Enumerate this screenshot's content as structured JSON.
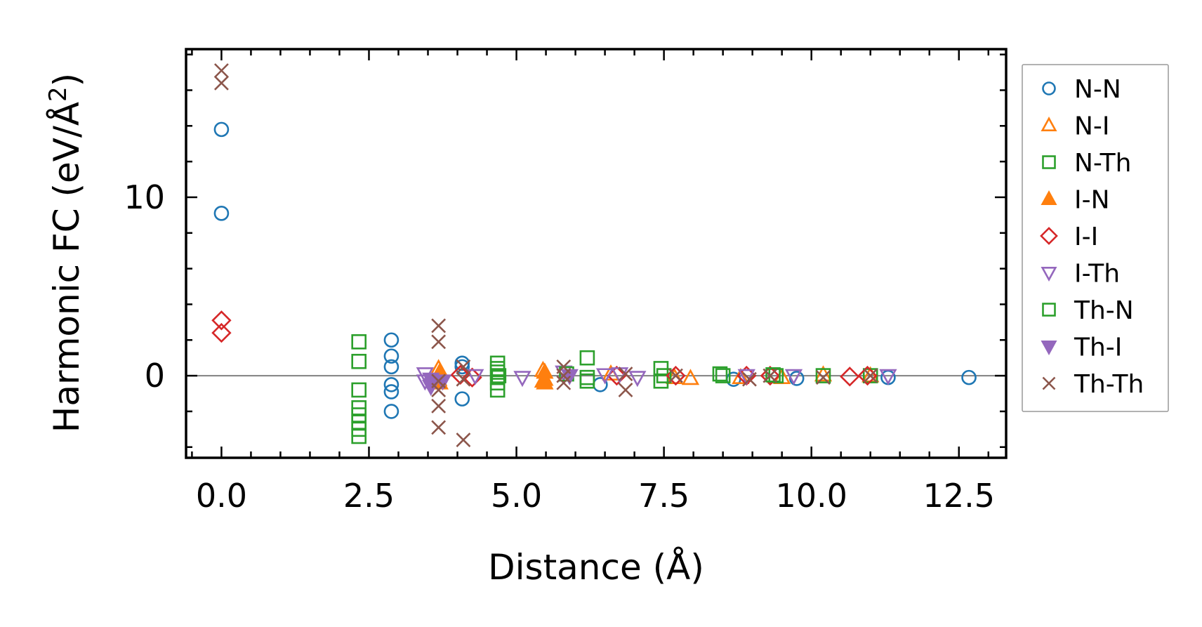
{
  "chart_data": {
    "type": "scatter",
    "title": "",
    "xlabel": "Distance (Å)",
    "ylabel_main": "Harmonic FC (eV/Å",
    "ylabel_sup": "2",
    "ylabel_close": ")",
    "xlim": [
      -0.6,
      13.3
    ],
    "ylim": [
      -4.6,
      18.3
    ],
    "xticks": [
      0.0,
      2.5,
      5.0,
      7.5,
      10.0,
      12.5
    ],
    "xtick_labels": [
      "0.0",
      "2.5",
      "5.0",
      "7.5",
      "10.0",
      "12.5"
    ],
    "yticks": [
      0,
      10
    ],
    "ytick_labels": [
      "0",
      "10"
    ],
    "grid": false,
    "zero_line": true,
    "legend_position": "outside-right",
    "series": [
      {
        "name": "N-N",
        "marker": "circle-open",
        "color": "#1f77b4",
        "points": [
          [
            0,
            13.8
          ],
          [
            0,
            9.1
          ],
          [
            2.88,
            2.0
          ],
          [
            2.88,
            1.1
          ],
          [
            2.88,
            0.5
          ],
          [
            2.88,
            -0.5
          ],
          [
            2.88,
            -0.9
          ],
          [
            2.88,
            -2.0
          ],
          [
            4.08,
            0.7
          ],
          [
            4.08,
            0.5
          ],
          [
            4.08,
            -1.3
          ],
          [
            6.42,
            -0.5
          ],
          [
            8.68,
            -0.2
          ],
          [
            9.75,
            -0.15
          ],
          [
            11.3,
            -0.1
          ],
          [
            12.67,
            -0.1
          ]
        ]
      },
      {
        "name": "N-I",
        "marker": "triangle-up-open",
        "color": "#ff7f0e",
        "points": [
          [
            3.68,
            0.4
          ],
          [
            3.68,
            -0.2
          ],
          [
            5.45,
            0.3
          ],
          [
            5.45,
            -0.3
          ],
          [
            6.6,
            0.1
          ],
          [
            7.68,
            -0.1
          ],
          [
            7.95,
            -0.15
          ],
          [
            8.8,
            -0.1
          ],
          [
            9.5,
            -0.1
          ],
          [
            10.2,
            0.05
          ],
          [
            11.0,
            0.0
          ]
        ]
      },
      {
        "name": "N-Th",
        "marker": "square-open",
        "color": "#2ca02c",
        "points": [
          [
            2.33,
            1.9
          ],
          [
            2.33,
            0.8
          ],
          [
            2.33,
            -0.8
          ],
          [
            2.33,
            -1.8
          ],
          [
            2.33,
            -2.2
          ],
          [
            2.33,
            -2.6
          ],
          [
            2.33,
            -3.0
          ],
          [
            2.33,
            -3.4
          ],
          [
            4.68,
            0.7
          ],
          [
            4.68,
            0.4
          ],
          [
            4.68,
            0.2
          ],
          [
            4.68,
            -0.1
          ],
          [
            4.68,
            -0.4
          ],
          [
            4.68,
            -0.8
          ],
          [
            6.2,
            1.0
          ],
          [
            6.2,
            -0.3
          ],
          [
            7.45,
            0.4
          ],
          [
            7.45,
            -0.3
          ],
          [
            8.45,
            0.1
          ],
          [
            9.4,
            0.0
          ],
          [
            10.2,
            0.0
          ],
          [
            11.0,
            0.0
          ]
        ]
      },
      {
        "name": "I-N",
        "marker": "triangle-up-filled",
        "color": "#ff7f0e",
        "points": [
          [
            3.7,
            0.2
          ],
          [
            3.7,
            -0.4
          ],
          [
            5.48,
            0.2
          ],
          [
            5.48,
            -0.4
          ],
          [
            5.48,
            -0.2
          ]
        ]
      },
      {
        "name": "I-I",
        "marker": "diamond-open",
        "color": "#d62728",
        "points": [
          [
            0,
            3.1
          ],
          [
            0,
            2.4
          ],
          [
            4.05,
            0.05
          ],
          [
            4.25,
            -0.1
          ],
          [
            6.7,
            0.0
          ],
          [
            7.7,
            0.0
          ],
          [
            8.9,
            0.0
          ],
          [
            9.3,
            0.0
          ],
          [
            10.65,
            -0.05
          ],
          [
            10.95,
            0.0
          ]
        ]
      },
      {
        "name": "I-Th",
        "marker": "triangle-down-open",
        "color": "#9467bd",
        "points": [
          [
            3.45,
            0.1
          ],
          [
            3.45,
            -0.3
          ],
          [
            4.3,
            0.0
          ],
          [
            5.1,
            -0.1
          ],
          [
            5.8,
            0.2
          ],
          [
            6.5,
            0.05
          ],
          [
            6.75,
            0.1
          ],
          [
            7.05,
            -0.1
          ],
          [
            8.9,
            0.0
          ],
          [
            9.7,
            0.0
          ],
          [
            11.3,
            0.0
          ]
        ]
      },
      {
        "name": "Th-N",
        "marker": "square-open",
        "color": "#2ca02c",
        "points": [
          [
            4.7,
            0.0
          ],
          [
            5.85,
            0.1
          ],
          [
            6.2,
            -0.1
          ],
          [
            7.5,
            0.0
          ],
          [
            8.5,
            0.0
          ],
          [
            9.35,
            0.05
          ]
        ]
      },
      {
        "name": "Th-I",
        "marker": "triangle-down-filled",
        "color": "#9467bd",
        "points": [
          [
            3.55,
            -0.2
          ],
          [
            3.55,
            -0.5
          ],
          [
            3.55,
            -0.6
          ],
          [
            3.75,
            -0.3
          ],
          [
            5.9,
            0.0
          ]
        ]
      },
      {
        "name": "Th-Th",
        "marker": "x",
        "color": "#8c564b",
        "points": [
          [
            0,
            17.1
          ],
          [
            0,
            16.4
          ],
          [
            3.68,
            2.8
          ],
          [
            3.68,
            1.9
          ],
          [
            3.68,
            -0.3
          ],
          [
            3.68,
            -0.8
          ],
          [
            3.68,
            -1.7
          ],
          [
            3.68,
            -2.9
          ],
          [
            4.1,
            0.5
          ],
          [
            4.1,
            -0.2
          ],
          [
            4.1,
            -3.6
          ],
          [
            5.8,
            0.5
          ],
          [
            5.8,
            0.0
          ],
          [
            5.8,
            -0.4
          ],
          [
            6.85,
            -0.8
          ],
          [
            6.85,
            0.1
          ],
          [
            7.7,
            0.0
          ],
          [
            8.95,
            -0.2
          ],
          [
            9.3,
            0.0
          ],
          [
            10.2,
            -0.1
          ],
          [
            11.0,
            0.0
          ]
        ]
      }
    ]
  }
}
